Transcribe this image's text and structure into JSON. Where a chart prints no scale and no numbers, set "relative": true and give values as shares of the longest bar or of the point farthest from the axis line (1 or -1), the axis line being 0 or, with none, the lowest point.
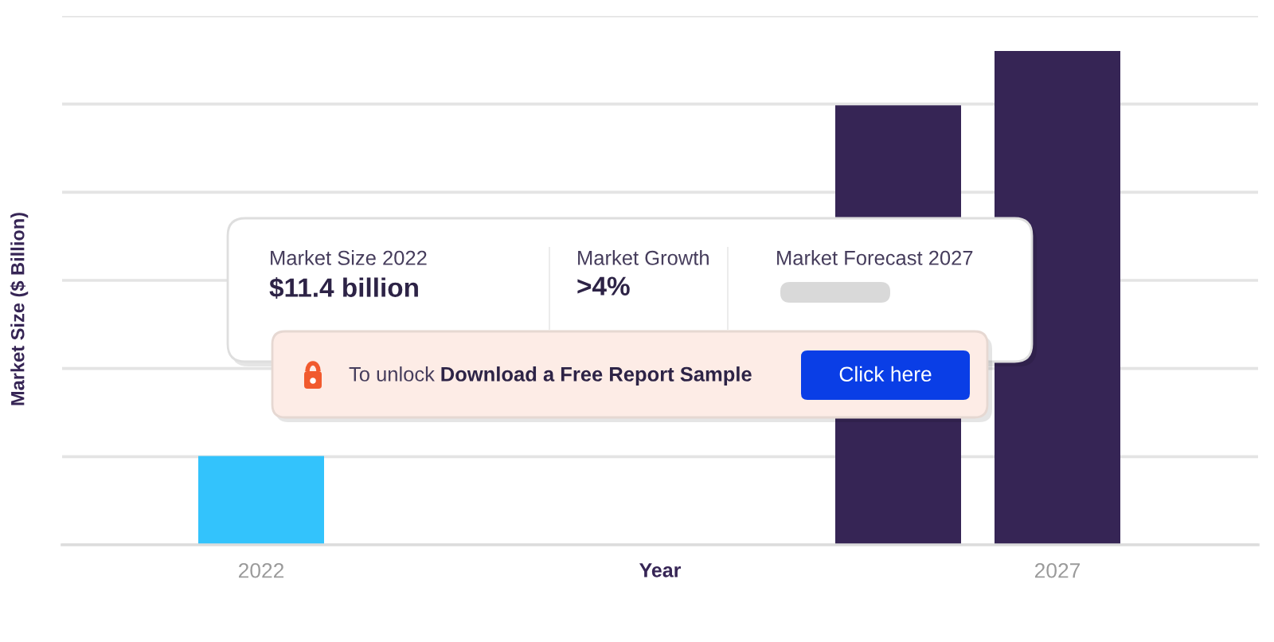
{
  "chart_data": {
    "type": "bar",
    "xlabel": "Year",
    "ylabel": "Market Size ($ Billion)",
    "categories": [
      "2022",
      null,
      null,
      null,
      null,
      "2027"
    ],
    "values": [
      0.18,
      null,
      null,
      null,
      0.89,
      1
    ],
    "colors": [
      "#33c3fc",
      "#362555",
      "#362555",
      "#362555",
      "#362555",
      "#362555"
    ],
    "relative": true,
    "grid": "y",
    "annotations": [
      "Market Size 2022",
      "$11.4 billion",
      "Market Growth",
      ">4%",
      "Market Forecast 2027",
      "To unlock",
      "Download a Free Report Sample",
      "Click here"
    ]
  }
}
